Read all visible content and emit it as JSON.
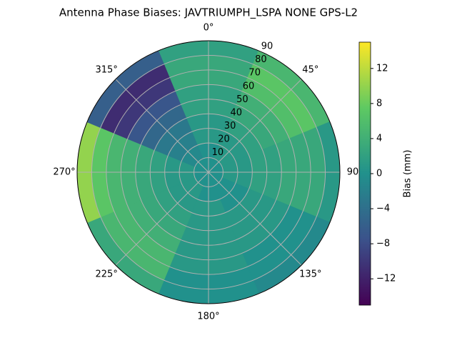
{
  "chart_data": {
    "type": "polar-contour",
    "title": "Antenna Phase Biases: JAVTRIUMPH_LSPA NONE GPS-L2",
    "colorbar_label": "Bias (mm)",
    "azimuths": [
      0,
      45,
      90,
      135,
      180,
      225,
      270,
      315
    ],
    "zeniths": [
      5,
      15,
      25,
      35,
      45,
      55,
      65,
      75,
      85
    ],
    "values": [
      [
        0,
        0,
        1,
        1,
        2,
        2,
        3,
        3,
        2
      ],
      [
        0,
        1,
        1,
        2,
        3,
        4,
        6,
        7,
        5
      ],
      [
        0,
        1,
        1,
        2,
        2,
        3,
        3,
        3,
        1
      ],
      [
        0,
        0,
        0,
        1,
        1,
        1,
        0,
        0,
        -1
      ],
      [
        0,
        0,
        1,
        1,
        1,
        1,
        1,
        0,
        0
      ],
      [
        0,
        1,
        1,
        2,
        3,
        4,
        5,
        5,
        3
      ],
      [
        0,
        1,
        1,
        2,
        3,
        4,
        5,
        7,
        10
      ],
      [
        0,
        -1,
        -2,
        -3,
        -5,
        -7,
        -10,
        -11,
        -6
      ]
    ],
    "xlim": [
      0,
      360
    ],
    "xticks": [
      {
        "value": 0,
        "label": "0°"
      },
      {
        "value": 45,
        "label": "45°"
      },
      {
        "value": 90,
        "label": "90"
      },
      {
        "value": 135,
        "label": "135°"
      },
      {
        "value": 180,
        "label": "180°"
      },
      {
        "value": 225,
        "label": "225°"
      },
      {
        "value": 270,
        "label": "270°"
      },
      {
        "value": 315,
        "label": "315°"
      }
    ],
    "ylim": [
      0,
      90
    ],
    "yticks": [
      10,
      20,
      30,
      40,
      50,
      60,
      70,
      80,
      90
    ],
    "clim": [
      -15,
      15
    ],
    "cticks": [
      {
        "value": -12,
        "label": "−12"
      },
      {
        "value": -8,
        "label": "−8"
      },
      {
        "value": -4,
        "label": "−4"
      },
      0,
      4,
      8,
      12
    ],
    "colormap": [
      "#440154",
      "#3b528b",
      "#21918c",
      "#5ec962",
      "#fde725"
    ],
    "grid": true
  }
}
